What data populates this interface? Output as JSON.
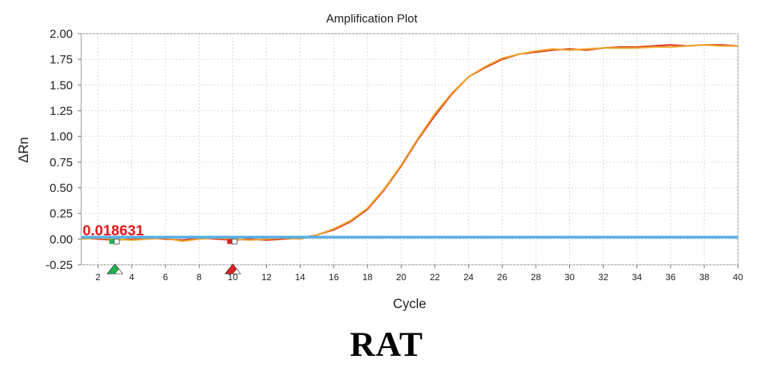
{
  "chart_data": {
    "type": "line",
    "title": "Amplification Plot",
    "xlabel": "Cycle",
    "ylabel": "ΔRn",
    "xlim": [
      1,
      40
    ],
    "ylim": [
      -0.25,
      2.0
    ],
    "xticks": [
      2,
      4,
      6,
      8,
      10,
      12,
      14,
      16,
      18,
      20,
      22,
      24,
      26,
      28,
      30,
      32,
      34,
      36,
      38,
      40
    ],
    "yticks": [
      -0.25,
      0.0,
      0.25,
      0.5,
      0.75,
      1.0,
      1.25,
      1.5,
      1.75,
      2.0
    ],
    "ytick_labels": [
      "-0.25",
      "0.00",
      "0.25",
      "0.50",
      "0.75",
      "1.00",
      "1.25",
      "1.50",
      "1.75",
      "2.00"
    ],
    "grid": true,
    "threshold": {
      "value": 0.018631,
      "label": "0.018631",
      "color": "#5aaee8"
    },
    "baseline_markers": [
      {
        "name": "baseline-start",
        "cycle": 3,
        "color": "#22b14c"
      },
      {
        "name": "baseline-end",
        "cycle": 10,
        "color": "#e02020"
      }
    ],
    "series": [
      {
        "name": "amplification-red",
        "color": "#d9381e",
        "x": [
          1,
          2,
          3,
          4,
          5,
          6,
          7,
          8,
          9,
          10,
          11,
          12,
          13,
          14,
          15,
          16,
          17,
          18,
          19,
          20,
          21,
          22,
          23,
          24,
          25,
          26,
          27,
          28,
          29,
          30,
          31,
          32,
          33,
          34,
          35,
          36,
          37,
          38,
          39,
          40
        ],
        "y": [
          0.01,
          0.0,
          -0.01,
          0.0,
          0.01,
          0.0,
          -0.01,
          0.01,
          0.0,
          -0.01,
          0.0,
          -0.01,
          0.0,
          0.01,
          0.04,
          0.09,
          0.17,
          0.29,
          0.48,
          0.71,
          0.97,
          1.2,
          1.41,
          1.58,
          1.67,
          1.75,
          1.8,
          1.82,
          1.84,
          1.85,
          1.84,
          1.86,
          1.87,
          1.87,
          1.88,
          1.89,
          1.88,
          1.89,
          1.89,
          1.88
        ]
      },
      {
        "name": "amplification-orange",
        "color": "#f2a22a",
        "x": [
          1,
          2,
          3,
          4,
          5,
          6,
          7,
          8,
          9,
          10,
          11,
          12,
          13,
          14,
          15,
          16,
          17,
          18,
          19,
          20,
          21,
          22,
          23,
          24,
          25,
          26,
          27,
          28,
          29,
          30,
          31,
          32,
          33,
          34,
          35,
          36,
          37,
          38,
          39,
          40
        ],
        "y": [
          0.0,
          0.01,
          0.0,
          -0.01,
          0.0,
          0.01,
          -0.02,
          0.0,
          0.01,
          0.0,
          -0.01,
          0.0,
          0.01,
          0.0,
          0.04,
          0.1,
          0.18,
          0.3,
          0.49,
          0.72,
          0.98,
          1.22,
          1.42,
          1.58,
          1.68,
          1.76,
          1.8,
          1.83,
          1.85,
          1.84,
          1.85,
          1.86,
          1.86,
          1.86,
          1.87,
          1.87,
          1.88,
          1.89,
          1.88,
          1.88
        ]
      }
    ]
  },
  "caption": "RAT"
}
